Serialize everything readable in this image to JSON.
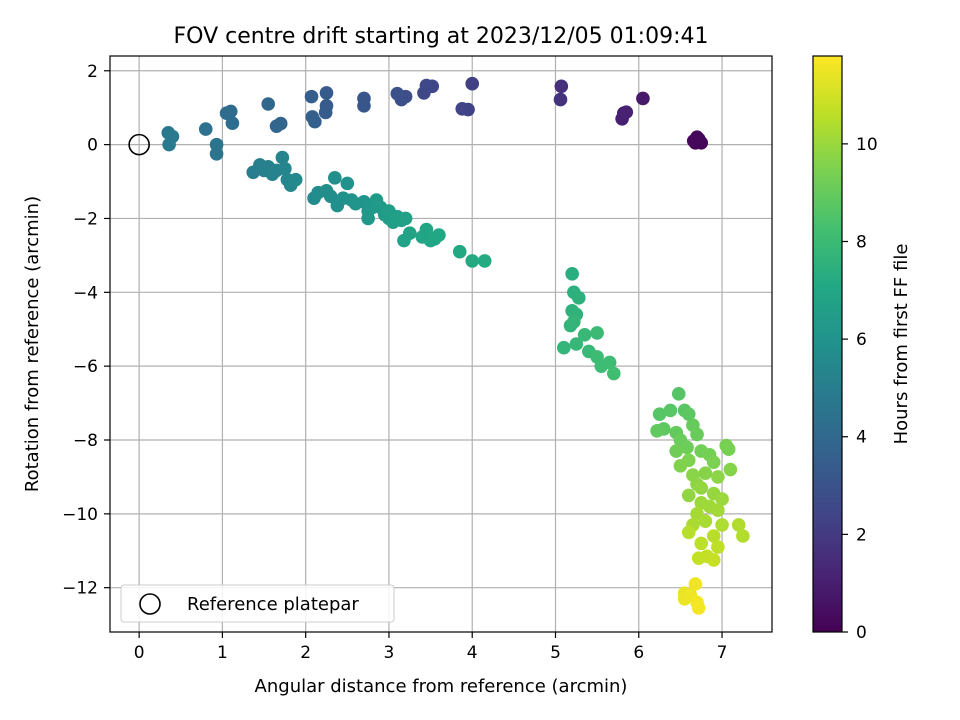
{
  "chart_data": {
    "type": "scatter",
    "title": "FOV centre drift starting at 2023/12/05 01:09:41",
    "xlabel": "Angular distance from reference (arcmin)",
    "ylabel": "Rotation from reference (arcmin)",
    "xlim": [
      -0.35,
      7.6
    ],
    "ylim": [
      -13.2,
      2.4
    ],
    "xticks": [
      0,
      1,
      2,
      3,
      4,
      5,
      6,
      7
    ],
    "yticks": [
      2,
      0,
      -2,
      -4,
      -6,
      -8,
      -10,
      -12
    ],
    "grid": true,
    "colorbar": {
      "label": "Hours from first FF file",
      "range": [
        0,
        11.8
      ],
      "ticks": [
        0,
        2,
        4,
        6,
        8,
        10
      ],
      "colormap": "viridis"
    },
    "legend": {
      "placement": "lower-left",
      "entries": [
        "Reference platepar"
      ]
    },
    "reference_point": {
      "x": 0,
      "y": 0
    },
    "points": [
      {
        "x": 6.68,
        "y": 0.05,
        "h": 0.05
      },
      {
        "x": 6.72,
        "y": 0.15,
        "h": 0.1
      },
      {
        "x": 6.75,
        "y": 0.05,
        "h": 0.15
      },
      {
        "x": 6.7,
        "y": 0.2,
        "h": 0.2
      },
      {
        "x": 6.66,
        "y": 0.1,
        "h": 0.25
      },
      {
        "x": 6.05,
        "y": 1.25,
        "h": 0.8
      },
      {
        "x": 5.82,
        "y": 0.85,
        "h": 1.0
      },
      {
        "x": 5.8,
        "y": 0.7,
        "h": 1.05
      },
      {
        "x": 5.85,
        "y": 0.88,
        "h": 1.1
      },
      {
        "x": 5.07,
        "y": 1.58,
        "h": 1.6
      },
      {
        "x": 5.06,
        "y": 1.22,
        "h": 1.7
      },
      {
        "x": 4.0,
        "y": 1.65,
        "h": 2.2
      },
      {
        "x": 3.95,
        "y": 0.95,
        "h": 2.3
      },
      {
        "x": 3.88,
        "y": 0.97,
        "h": 2.35
      },
      {
        "x": 3.52,
        "y": 1.58,
        "h": 2.5
      },
      {
        "x": 3.45,
        "y": 1.6,
        "h": 2.55
      },
      {
        "x": 3.42,
        "y": 1.4,
        "h": 2.6
      },
      {
        "x": 3.2,
        "y": 1.3,
        "h": 2.8
      },
      {
        "x": 3.15,
        "y": 1.22,
        "h": 2.85
      },
      {
        "x": 3.1,
        "y": 1.38,
        "h": 2.9
      },
      {
        "x": 2.7,
        "y": 1.25,
        "h": 3.1
      },
      {
        "x": 2.7,
        "y": 1.05,
        "h": 3.15
      },
      {
        "x": 2.25,
        "y": 1.4,
        "h": 3.3
      },
      {
        "x": 2.25,
        "y": 1.05,
        "h": 3.35
      },
      {
        "x": 2.24,
        "y": 0.87,
        "h": 3.4
      },
      {
        "x": 2.07,
        "y": 1.3,
        "h": 3.5
      },
      {
        "x": 2.08,
        "y": 0.75,
        "h": 3.55
      },
      {
        "x": 2.11,
        "y": 0.62,
        "h": 3.6
      },
      {
        "x": 1.7,
        "y": 0.57,
        "h": 3.8
      },
      {
        "x": 1.65,
        "y": 0.5,
        "h": 3.85
      },
      {
        "x": 1.55,
        "y": 1.1,
        "h": 3.9
      },
      {
        "x": 1.1,
        "y": 0.9,
        "h": 4.1
      },
      {
        "x": 1.05,
        "y": 0.85,
        "h": 4.15
      },
      {
        "x": 1.12,
        "y": 0.58,
        "h": 4.2
      },
      {
        "x": 0.8,
        "y": 0.42,
        "h": 4.4
      },
      {
        "x": 0.93,
        "y": 0.0,
        "h": 4.5
      },
      {
        "x": 0.93,
        "y": -0.25,
        "h": 4.55
      },
      {
        "x": 0.35,
        "y": 0.32,
        "h": 4.7
      },
      {
        "x": 0.4,
        "y": 0.22,
        "h": 4.75
      },
      {
        "x": 0.36,
        "y": 0.0,
        "h": 4.8
      },
      {
        "x": 1.37,
        "y": -0.75,
        "h": 5.0
      },
      {
        "x": 1.45,
        "y": -0.55,
        "h": 5.05
      },
      {
        "x": 1.5,
        "y": -0.7,
        "h": 5.1
      },
      {
        "x": 1.55,
        "y": -0.6,
        "h": 5.15
      },
      {
        "x": 1.6,
        "y": -0.8,
        "h": 5.2
      },
      {
        "x": 1.65,
        "y": -0.7,
        "h": 5.25
      },
      {
        "x": 1.72,
        "y": -0.35,
        "h": 5.3
      },
      {
        "x": 1.75,
        "y": -0.65,
        "h": 5.35
      },
      {
        "x": 1.78,
        "y": -0.95,
        "h": 5.4
      },
      {
        "x": 1.82,
        "y": -1.1,
        "h": 5.45
      },
      {
        "x": 1.88,
        "y": -0.95,
        "h": 5.5
      },
      {
        "x": 2.1,
        "y": -1.45,
        "h": 5.6
      },
      {
        "x": 2.15,
        "y": -1.3,
        "h": 5.65
      },
      {
        "x": 2.25,
        "y": -1.25,
        "h": 5.7
      },
      {
        "x": 2.3,
        "y": -1.4,
        "h": 5.75
      },
      {
        "x": 2.35,
        "y": -0.9,
        "h": 5.8
      },
      {
        "x": 2.38,
        "y": -1.65,
        "h": 5.85
      },
      {
        "x": 2.45,
        "y": -1.45,
        "h": 5.9
      },
      {
        "x": 2.5,
        "y": -1.05,
        "h": 5.95
      },
      {
        "x": 2.55,
        "y": -1.5,
        "h": 6.0
      },
      {
        "x": 2.6,
        "y": -1.6,
        "h": 6.05
      },
      {
        "x": 2.7,
        "y": -1.55,
        "h": 6.1
      },
      {
        "x": 2.75,
        "y": -1.8,
        "h": 6.15
      },
      {
        "x": 2.75,
        "y": -2.0,
        "h": 6.2
      },
      {
        "x": 2.8,
        "y": -1.7,
        "h": 6.25
      },
      {
        "x": 2.85,
        "y": -1.5,
        "h": 6.3
      },
      {
        "x": 2.9,
        "y": -1.7,
        "h": 6.35
      },
      {
        "x": 2.95,
        "y": -1.9,
        "h": 6.4
      },
      {
        "x": 3.0,
        "y": -2.0,
        "h": 6.45
      },
      {
        "x": 3.0,
        "y": -1.8,
        "h": 6.5
      },
      {
        "x": 3.05,
        "y": -2.1,
        "h": 6.55
      },
      {
        "x": 3.1,
        "y": -1.95,
        "h": 6.6
      },
      {
        "x": 3.15,
        "y": -2.05,
        "h": 6.65
      },
      {
        "x": 3.2,
        "y": -2.0,
        "h": 6.7
      },
      {
        "x": 3.18,
        "y": -2.6,
        "h": 6.75
      },
      {
        "x": 3.25,
        "y": -2.4,
        "h": 6.8
      },
      {
        "x": 3.4,
        "y": -2.5,
        "h": 6.85
      },
      {
        "x": 3.45,
        "y": -2.3,
        "h": 6.9
      },
      {
        "x": 3.5,
        "y": -2.6,
        "h": 6.95
      },
      {
        "x": 3.55,
        "y": -2.55,
        "h": 7.0
      },
      {
        "x": 3.6,
        "y": -2.45,
        "h": 7.05
      },
      {
        "x": 3.85,
        "y": -2.9,
        "h": 7.1
      },
      {
        "x": 4.0,
        "y": -3.15,
        "h": 7.15
      },
      {
        "x": 4.15,
        "y": -3.15,
        "h": 7.2
      },
      {
        "x": 5.2,
        "y": -3.5,
        "h": 7.4
      },
      {
        "x": 5.22,
        "y": -4.0,
        "h": 7.45
      },
      {
        "x": 5.28,
        "y": -4.15,
        "h": 7.5
      },
      {
        "x": 5.2,
        "y": -4.5,
        "h": 7.55
      },
      {
        "x": 5.25,
        "y": -4.6,
        "h": 7.6
      },
      {
        "x": 5.18,
        "y": -4.9,
        "h": 7.65
      },
      {
        "x": 5.22,
        "y": -4.8,
        "h": 7.7
      },
      {
        "x": 5.1,
        "y": -5.5,
        "h": 7.75
      },
      {
        "x": 5.25,
        "y": -5.4,
        "h": 7.8
      },
      {
        "x": 5.35,
        "y": -5.15,
        "h": 7.85
      },
      {
        "x": 5.4,
        "y": -5.6,
        "h": 7.9
      },
      {
        "x": 5.5,
        "y": -5.1,
        "h": 7.95
      },
      {
        "x": 5.5,
        "y": -5.75,
        "h": 8.0
      },
      {
        "x": 5.55,
        "y": -6.0,
        "h": 8.05
      },
      {
        "x": 5.65,
        "y": -5.9,
        "h": 8.1
      },
      {
        "x": 5.7,
        "y": -6.2,
        "h": 8.15
      },
      {
        "x": 6.48,
        "y": -6.75,
        "h": 8.6
      },
      {
        "x": 6.25,
        "y": -7.3,
        "h": 8.65
      },
      {
        "x": 6.38,
        "y": -7.2,
        "h": 8.7
      },
      {
        "x": 6.55,
        "y": -7.2,
        "h": 8.75
      },
      {
        "x": 6.6,
        "y": -7.3,
        "h": 8.8
      },
      {
        "x": 6.3,
        "y": -7.7,
        "h": 8.85
      },
      {
        "x": 6.22,
        "y": -7.75,
        "h": 8.9
      },
      {
        "x": 6.45,
        "y": -7.8,
        "h": 8.95
      },
      {
        "x": 6.65,
        "y": -7.6,
        "h": 9.0
      },
      {
        "x": 6.7,
        "y": -7.85,
        "h": 9.05
      },
      {
        "x": 6.5,
        "y": -8.0,
        "h": 9.1
      },
      {
        "x": 6.58,
        "y": -8.2,
        "h": 9.15
      },
      {
        "x": 6.45,
        "y": -8.3,
        "h": 9.2
      },
      {
        "x": 6.75,
        "y": -8.3,
        "h": 9.25
      },
      {
        "x": 6.85,
        "y": -8.4,
        "h": 9.3
      },
      {
        "x": 7.05,
        "y": -8.15,
        "h": 9.35
      },
      {
        "x": 7.08,
        "y": -8.25,
        "h": 9.4
      },
      {
        "x": 6.9,
        "y": -8.6,
        "h": 9.45
      },
      {
        "x": 6.6,
        "y": -8.55,
        "h": 9.5
      },
      {
        "x": 6.5,
        "y": -8.7,
        "h": 9.55
      },
      {
        "x": 7.1,
        "y": -8.8,
        "h": 9.6
      },
      {
        "x": 6.8,
        "y": -8.9,
        "h": 9.65
      },
      {
        "x": 6.65,
        "y": -8.95,
        "h": 9.7
      },
      {
        "x": 6.95,
        "y": -9.0,
        "h": 9.75
      },
      {
        "x": 6.7,
        "y": -9.2,
        "h": 9.8
      },
      {
        "x": 6.6,
        "y": -9.5,
        "h": 9.85
      },
      {
        "x": 6.75,
        "y": -9.3,
        "h": 9.9
      },
      {
        "x": 6.9,
        "y": -9.45,
        "h": 9.95
      },
      {
        "x": 7.0,
        "y": -9.6,
        "h": 10.0
      },
      {
        "x": 6.75,
        "y": -9.7,
        "h": 10.05
      },
      {
        "x": 6.85,
        "y": -9.8,
        "h": 10.1
      },
      {
        "x": 6.95,
        "y": -9.9,
        "h": 10.15
      },
      {
        "x": 6.7,
        "y": -10.0,
        "h": 10.2
      },
      {
        "x": 6.8,
        "y": -10.2,
        "h": 10.25
      },
      {
        "x": 6.65,
        "y": -10.3,
        "h": 10.3
      },
      {
        "x": 7.0,
        "y": -10.3,
        "h": 10.35
      },
      {
        "x": 7.2,
        "y": -10.3,
        "h": 10.4
      },
      {
        "x": 7.25,
        "y": -10.6,
        "h": 10.45
      },
      {
        "x": 6.6,
        "y": -10.5,
        "h": 10.5
      },
      {
        "x": 6.9,
        "y": -10.6,
        "h": 10.55
      },
      {
        "x": 6.75,
        "y": -10.8,
        "h": 10.6
      },
      {
        "x": 6.95,
        "y": -10.9,
        "h": 10.65
      },
      {
        "x": 6.72,
        "y": -11.2,
        "h": 10.7
      },
      {
        "x": 6.82,
        "y": -11.15,
        "h": 10.75
      },
      {
        "x": 6.9,
        "y": -11.25,
        "h": 10.8
      },
      {
        "x": 6.55,
        "y": -12.15,
        "h": 11.4
      },
      {
        "x": 6.55,
        "y": -12.3,
        "h": 11.45
      },
      {
        "x": 6.62,
        "y": -12.2,
        "h": 11.5
      },
      {
        "x": 6.68,
        "y": -11.9,
        "h": 11.55
      },
      {
        "x": 6.7,
        "y": -12.4,
        "h": 11.6
      },
      {
        "x": 6.72,
        "y": -12.55,
        "h": 11.65
      }
    ]
  }
}
